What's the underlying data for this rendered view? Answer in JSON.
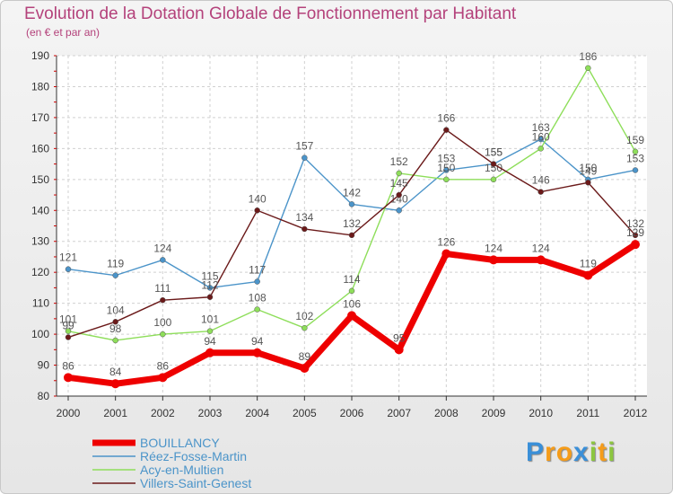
{
  "chart_data": {
    "type": "line",
    "title": "Evolution de la Dotation Globale de Fonctionnement par Habitant",
    "subtitle": "(en € et par an)",
    "x": [
      "2000",
      "2001",
      "2002",
      "2003",
      "2004",
      "2005",
      "2006",
      "2007",
      "2008",
      "2009",
      "2010",
      "2011",
      "2012"
    ],
    "ylim": [
      80,
      190
    ],
    "yticks": [
      "80",
      "90",
      "100",
      "110",
      "120",
      "130",
      "140",
      "150",
      "160",
      "170",
      "180",
      "190"
    ],
    "grid": true,
    "legend_position": "bottom-left",
    "series": [
      {
        "name": "BOUILLANCY",
        "color": "#ee0000",
        "values": [
          86,
          84,
          86,
          94,
          94,
          89,
          106,
          95,
          126,
          124,
          124,
          119,
          129
        ]
      },
      {
        "name": "Réez-Fosse-Martin",
        "color": "#4b94c9",
        "values": [
          121,
          119,
          124,
          115,
          117,
          157,
          142,
          140,
          153,
          155,
          163,
          150,
          153
        ]
      },
      {
        "name": "Acy-en-Multien",
        "color": "#8ede5a",
        "values": [
          101,
          98,
          100,
          101,
          108,
          102,
          114,
          152,
          150,
          150,
          160,
          186,
          159
        ]
      },
      {
        "name": "Villers-Saint-Genest",
        "color": "#6b1a1a",
        "values": [
          99,
          104,
          111,
          112,
          140,
          134,
          132,
          145,
          166,
          155,
          146,
          149,
          132
        ]
      }
    ]
  },
  "logo": {
    "letters": [
      "P",
      "r",
      "o",
      "x",
      "i",
      "t",
      "i"
    ],
    "colors": [
      "#3a8fd8",
      "#f59c1a",
      "#f59c1a",
      "#3a8fd8",
      "#8cc63f",
      "#f59c1a",
      "#8cc63f"
    ]
  }
}
